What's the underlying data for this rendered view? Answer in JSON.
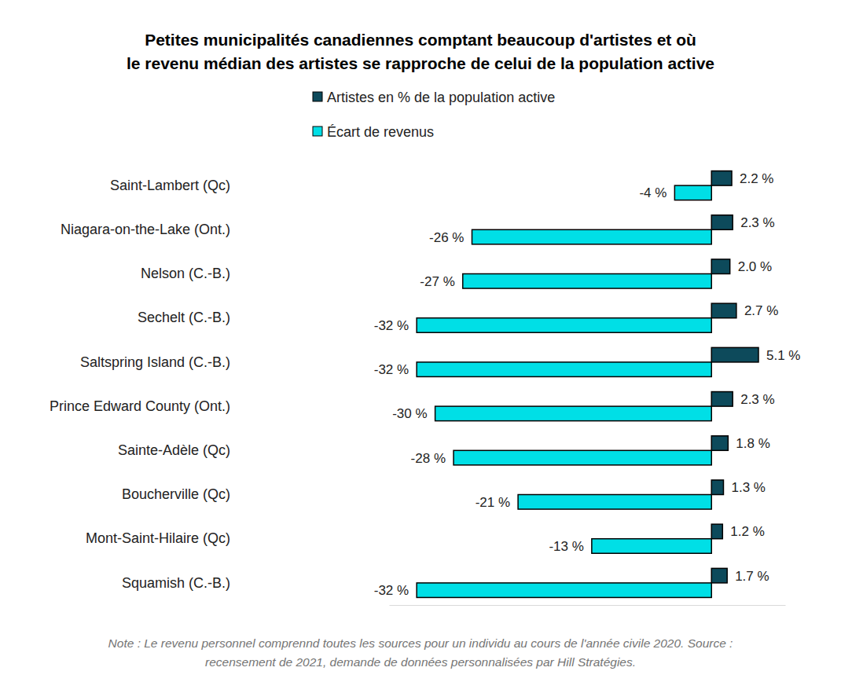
{
  "chart_data": {
    "type": "bar",
    "orientation": "horizontal",
    "title": "Petites municipalités canadiennes comptant beaucoup d'artistes et où\nle revenu médian des artistes se rapproche de celui de la population active",
    "note": "Note : Le revenu personnel comprennd toutes les sources pour un individu au cours de l'année civile 2020. Source :\nrecensement de 2021, demande de données personnalisées par Hill Stratégies.",
    "categories": [
      "Saint-Lambert (Qc)",
      "Niagara-on-the-Lake (Ont.)",
      "Nelson (C.-B.)",
      "Sechelt (C.-B.)",
      "Saltspring Island (C.-B.)",
      "Prince Edward County (Ont.)",
      "Sainte-Adèle (Qc)",
      "Boucherville (Qc)",
      "Mont-Saint-Hilaire (Qc)",
      "Squamish (C.-B.)"
    ],
    "series": [
      {
        "name": "Artistes en % de la population active",
        "color": "#0d4a5b",
        "values": [
          2.2,
          2.3,
          2.0,
          2.7,
          5.1,
          2.3,
          1.8,
          1.3,
          1.2,
          1.7
        ],
        "value_labels": [
          "2.2 %",
          "2.3 %",
          "2.0 %",
          "2.7 %",
          "5.1 %",
          "2.3 %",
          "1.8 %",
          "1.3 %",
          "1.2 %",
          "1.7 %"
        ]
      },
      {
        "name": "Écart de revenus",
        "color": "#00dfe6",
        "values": [
          -4,
          -26,
          -27,
          -32,
          -32,
          -30,
          -28,
          -21,
          -13,
          -32
        ],
        "value_labels": [
          "-4 %",
          "-26 %",
          "-27 %",
          "-32 %",
          "-32 %",
          "-30 %",
          "-28 %",
          "-21 %",
          "-13 %",
          "-32 %"
        ]
      }
    ],
    "xlim": [
      -35,
      8
    ],
    "xticks": [],
    "tick_labels": "y",
    "data_labels": true,
    "legend": "top",
    "grid": false
  }
}
